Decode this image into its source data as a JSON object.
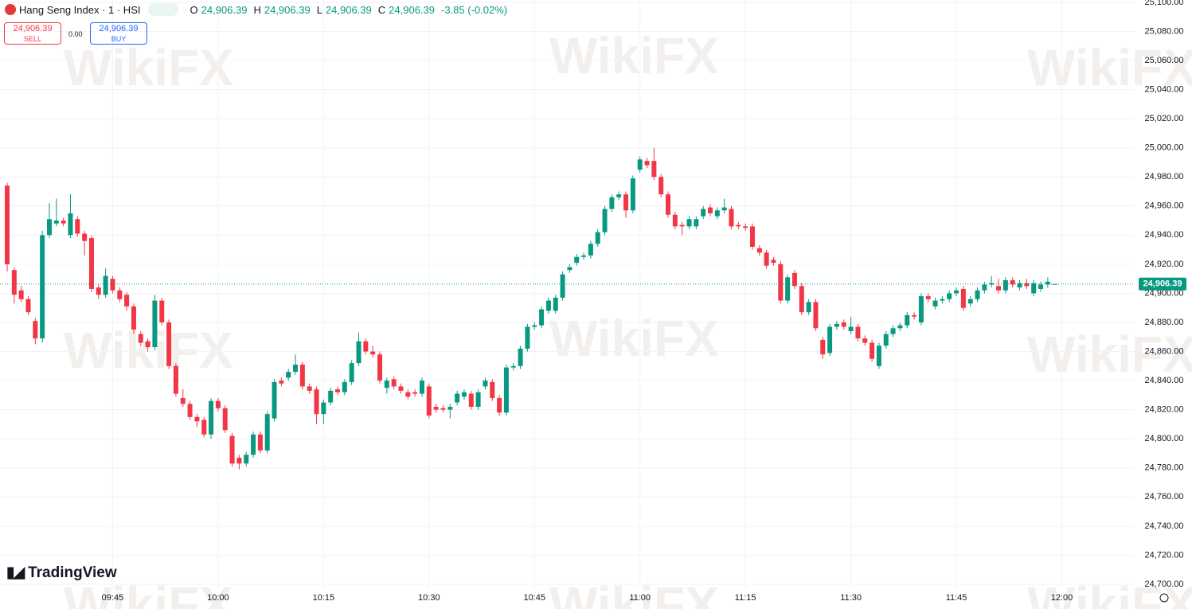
{
  "chart_data": {
    "type": "candlestick",
    "title": "Hang Seng Index · 1 · HSI",
    "ohlc_labels": [
      {
        "key": "O",
        "text": "24,906.39"
      },
      {
        "key": "H",
        "text": "24,906.39"
      },
      {
        "key": "L",
        "text": "24,906.39"
      },
      {
        "key": "C",
        "text": "24,906.39"
      }
    ],
    "change": "-3.85 (-0.02%)",
    "sell": {
      "price": "24,906.39",
      "label": "SELL"
    },
    "spread": "0.00",
    "buy": {
      "price": "24,906.39",
      "label": "BUY"
    },
    "logo": "TradingView",
    "watermark": "WikiFX",
    "up_color": "#089981",
    "down_color": "#f23645",
    "grid": true,
    "last_price": {
      "value": 24906.39,
      "label": "24,906.39"
    },
    "ylim": [
      24696.7,
      25101.6
    ],
    "yticks": [
      {
        "value": 24700,
        "label": "24,700.00"
      },
      {
        "value": 24720,
        "label": "24,720.00"
      },
      {
        "value": 24740,
        "label": "24,740.00"
      },
      {
        "value": 24760,
        "label": "24,760.00"
      },
      {
        "value": 24780,
        "label": "24,780.00"
      },
      {
        "value": 24800,
        "label": "24,800.00"
      },
      {
        "value": 24820,
        "label": "24,820.00"
      },
      {
        "value": 24840,
        "label": "24,840.00"
      },
      {
        "value": 24860,
        "label": "24,860.00"
      },
      {
        "value": 24880,
        "label": "24,880.00"
      },
      {
        "value": 24900,
        "label": "24,900.00"
      },
      {
        "value": 24920,
        "label": "24,920.00"
      },
      {
        "value": 24940,
        "label": "24,940.00"
      },
      {
        "value": 24960,
        "label": "24,960.00"
      },
      {
        "value": 24980,
        "label": "24,980.00"
      },
      {
        "value": 25000,
        "label": "25,000.00"
      },
      {
        "value": 25020,
        "label": "25,020.00"
      },
      {
        "value": 25040,
        "label": "25,040.00"
      },
      {
        "value": 25060,
        "label": "25,060.00"
      },
      {
        "value": 25080,
        "label": "25,080.00"
      },
      {
        "value": 25100,
        "label": "25,100.00"
      }
    ],
    "xticks": [
      "09:45",
      "10:00",
      "10:15",
      "10:30",
      "10:45",
      "11:00",
      "11:15",
      "11:30",
      "11:45",
      "12:00"
    ],
    "x": [
      "09:30",
      "09:31",
      "09:32",
      "09:33",
      "09:34",
      "09:35",
      "09:36",
      "09:37",
      "09:38",
      "09:39",
      "09:40",
      "09:41",
      "09:42",
      "09:43",
      "09:44",
      "09:45",
      "09:46",
      "09:47",
      "09:48",
      "09:49",
      "09:50",
      "09:51",
      "09:52",
      "09:53",
      "09:54",
      "09:55",
      "09:56",
      "09:57",
      "09:58",
      "09:59",
      "10:00",
      "10:01",
      "10:02",
      "10:03",
      "10:04",
      "10:05",
      "10:06",
      "10:07",
      "10:08",
      "10:09",
      "10:10",
      "10:11",
      "10:12",
      "10:13",
      "10:14",
      "10:15",
      "10:16",
      "10:17",
      "10:18",
      "10:19",
      "10:20",
      "10:21",
      "10:22",
      "10:23",
      "10:24",
      "10:25",
      "10:26",
      "10:27",
      "10:28",
      "10:29",
      "10:30",
      "10:31",
      "10:32",
      "10:33",
      "10:34",
      "10:35",
      "10:36",
      "10:37",
      "10:38",
      "10:39",
      "10:40",
      "10:41",
      "10:42",
      "10:43",
      "10:44",
      "10:45",
      "10:46",
      "10:47",
      "10:48",
      "10:49",
      "10:50",
      "10:51",
      "10:52",
      "10:53",
      "10:54",
      "10:55",
      "10:56",
      "10:57",
      "10:58",
      "10:59",
      "11:00",
      "11:01",
      "11:02",
      "11:03",
      "11:04",
      "11:05",
      "11:06",
      "11:07",
      "11:08",
      "11:09",
      "11:10",
      "11:11",
      "11:12",
      "11:13",
      "11:14",
      "11:15",
      "11:16",
      "11:17",
      "11:18",
      "11:19",
      "11:20",
      "11:21",
      "11:22",
      "11:23",
      "11:24",
      "11:25",
      "11:26",
      "11:27",
      "11:28",
      "11:29",
      "11:30",
      "11:31",
      "11:32",
      "11:33",
      "11:34",
      "11:35",
      "11:36",
      "11:37",
      "11:38",
      "11:39",
      "11:40",
      "11:41",
      "11:42",
      "11:43",
      "11:44",
      "11:45",
      "11:46",
      "11:47",
      "11:48",
      "11:49",
      "11:50",
      "11:51",
      "11:52",
      "11:53",
      "11:54",
      "11:55",
      "11:56",
      "11:57",
      "11:58",
      "11:59"
    ],
    "candles": [
      [
        24974,
        24976,
        24915,
        24920
      ],
      [
        24916,
        24918,
        24893,
        24899
      ],
      [
        24902,
        24905,
        24894,
        24896
      ],
      [
        24896,
        24898,
        24885,
        24887
      ],
      [
        24881,
        24883,
        24865,
        24869
      ],
      [
        24869,
        24943,
        24866,
        24940
      ],
      [
        24940,
        24962,
        24938,
        24951
      ],
      [
        24948,
        24965,
        24946,
        24950
      ],
      [
        24950,
        24952,
        24946,
        24948
      ],
      [
        24940,
        24968,
        24938,
        24955
      ],
      [
        24951,
        24953,
        24939,
        24941
      ],
      [
        24941,
        24943,
        24926,
        24936
      ],
      [
        24938,
        24940,
        24901,
        24903
      ],
      [
        24904,
        24906,
        24896,
        24899
      ],
      [
        24899,
        24917,
        24897,
        24912
      ],
      [
        24910,
        24912,
        24900,
        24902
      ],
      [
        24902,
        24904,
        24894,
        24896
      ],
      [
        24899,
        24901,
        24888,
        24891
      ],
      [
        24891,
        24893,
        24872,
        24875
      ],
      [
        24872,
        24874,
        24864,
        24866
      ],
      [
        24867,
        24869,
        24860,
        24863
      ],
      [
        24863,
        24899,
        24861,
        24895
      ],
      [
        24895,
        24897,
        24878,
        24880
      ],
      [
        24880,
        24882,
        24848,
        24850
      ],
      [
        24850,
        24852,
        24829,
        24831
      ],
      [
        24828,
        24834,
        24822,
        24824
      ],
      [
        24824,
        24826,
        24813,
        24815
      ],
      [
        24815,
        24817,
        24808,
        24812
      ],
      [
        24813,
        24815,
        24801,
        24803
      ],
      [
        24803,
        24828,
        24800,
        24826
      ],
      [
        24826,
        24828,
        24819,
        24821
      ],
      [
        24821,
        24823,
        24804,
        24806
      ],
      [
        24802,
        24804,
        24781,
        24783
      ],
      [
        24787,
        24789,
        24779,
        24783
      ],
      [
        24783,
        24791,
        24781,
        24789
      ],
      [
        24789,
        24805,
        24787,
        24803
      ],
      [
        24803,
        24805,
        24790,
        24792
      ],
      [
        24792,
        24819,
        24790,
        24817
      ],
      [
        24814,
        24841,
        24812,
        24839
      ],
      [
        24840,
        24842,
        24836,
        24838
      ],
      [
        24842,
        24848,
        24840,
        24846
      ],
      [
        24846,
        24858,
        24844,
        24851
      ],
      [
        24851,
        24853,
        24834,
        24836
      ],
      [
        24836,
        24838,
        24831,
        24833
      ],
      [
        24834,
        24836,
        24810,
        24817
      ],
      [
        24817,
        24827,
        24810,
        24825
      ],
      [
        24825,
        24835,
        24823,
        24833
      ],
      [
        24834,
        24836,
        24830,
        24832
      ],
      [
        24832,
        24841,
        24830,
        24839
      ],
      [
        24839,
        24854,
        24837,
        24852
      ],
      [
        24852,
        24873,
        24850,
        24867
      ],
      [
        24867,
        24869,
        24858,
        24860
      ],
      [
        24860,
        24864,
        24856,
        24858
      ],
      [
        24858,
        24860,
        24838,
        24840
      ],
      [
        24835,
        24842,
        24831,
        24840
      ],
      [
        24841,
        24843,
        24834,
        24836
      ],
      [
        24836,
        24838,
        24831,
        24833
      ],
      [
        24832,
        24834,
        24827,
        24829
      ],
      [
        24832,
        24834,
        24829,
        24831
      ],
      [
        24831,
        24842,
        24829,
        24840
      ],
      [
        24836,
        24838,
        24814,
        24816
      ],
      [
        24822,
        24824,
        24818,
        24820
      ],
      [
        24821,
        24823,
        24818,
        24820
      ],
      [
        24820,
        24824,
        24814,
        24822
      ],
      [
        24825,
        24833,
        24823,
        24831
      ],
      [
        24829,
        24834,
        24827,
        24832
      ],
      [
        24831,
        24833,
        24820,
        24822
      ],
      [
        24822,
        24834,
        24820,
        24832
      ],
      [
        24836,
        24842,
        24834,
        24840
      ],
      [
        24839,
        24841,
        24826,
        24828
      ],
      [
        24828,
        24830,
        24816,
        24818
      ],
      [
        24818,
        24851,
        24816,
        24849
      ],
      [
        24849,
        24852,
        24847,
        24850
      ],
      [
        24850,
        24864,
        24848,
        24862
      ],
      [
        24862,
        24879,
        24860,
        24877
      ],
      [
        24877,
        24880,
        24875,
        24878
      ],
      [
        24878,
        24891,
        24876,
        24889
      ],
      [
        24888,
        24897,
        24886,
        24895
      ],
      [
        24888,
        24899,
        24886,
        24897
      ],
      [
        24897,
        24915,
        24895,
        24913
      ],
      [
        24916,
        24920,
        24914,
        24918
      ],
      [
        24921,
        24927,
        24919,
        24925
      ],
      [
        24925,
        24928,
        24923,
        24926
      ],
      [
        24926,
        24936,
        24924,
        24934
      ],
      [
        24934,
        24944,
        24932,
        24942
      ],
      [
        24942,
        24960,
        24940,
        24958
      ],
      [
        24958,
        24968,
        24956,
        24966
      ],
      [
        24966,
        24970,
        24964,
        24968
      ],
      [
        24968,
        24970,
        24952,
        24957
      ],
      [
        24957,
        24981,
        24955,
        24979
      ],
      [
        24985,
        24994,
        24983,
        24992
      ],
      [
        24991,
        24993,
        24986,
        24988
      ],
      [
        24991,
        25000,
        24978,
        24980
      ],
      [
        24980,
        24982,
        24966,
        24968
      ],
      [
        24968,
        24970,
        24952,
        24954
      ],
      [
        24954,
        24956,
        24944,
        24946
      ],
      [
        24947,
        24949,
        24940,
        24946
      ],
      [
        24946,
        24953,
        24944,
        24951
      ],
      [
        24946,
        24953,
        24944,
        24951
      ],
      [
        24953,
        24960,
        24951,
        24958
      ],
      [
        24959,
        24961,
        24953,
        24955
      ],
      [
        24953,
        24959,
        24951,
        24957
      ],
      [
        24957,
        24965,
        24955,
        24959
      ],
      [
        24958,
        24960,
        24944,
        24946
      ],
      [
        24947,
        24949,
        24944,
        24946
      ],
      [
        24946,
        24948,
        24943,
        24945
      ],
      [
        24946,
        24948,
        24930,
        24932
      ],
      [
        24931,
        24933,
        24926,
        24928
      ],
      [
        24928,
        24930,
        24917,
        24919
      ],
      [
        24923,
        24925,
        24919,
        24921
      ],
      [
        24920,
        24922,
        24893,
        24895
      ],
      [
        24895,
        24913,
        24893,
        24911
      ],
      [
        24914,
        24916,
        24903,
        24905
      ],
      [
        24905,
        24907,
        24885,
        24887
      ],
      [
        24887,
        24896,
        24885,
        24894
      ],
      [
        24894,
        24896,
        24874,
        24876
      ],
      [
        24868,
        24870,
        24855,
        24858
      ],
      [
        24859,
        24879,
        24857,
        24877
      ],
      [
        24877,
        24881,
        24875,
        24879
      ],
      [
        24880,
        24882,
        24875,
        24877
      ],
      [
        24874,
        24884,
        24872,
        24877
      ],
      [
        24877,
        24879,
        24867,
        24869
      ],
      [
        24869,
        24871,
        24864,
        24866
      ],
      [
        24866,
        24868,
        24853,
        24855
      ],
      [
        24850,
        24866,
        24848,
        24864
      ],
      [
        24864,
        24874,
        24862,
        24872
      ],
      [
        24872,
        24878,
        24870,
        24876
      ],
      [
        24876,
        24880,
        24874,
        24878
      ],
      [
        24878,
        24887,
        24876,
        24885
      ],
      [
        24885,
        24887,
        24882,
        24884
      ],
      [
        24880,
        24900,
        24878,
        24898
      ],
      [
        24898,
        24900,
        24894,
        24896
      ],
      [
        24891,
        24897,
        24889,
        24895
      ],
      [
        24895,
        24898,
        24893,
        24896
      ],
      [
        24896,
        24902,
        24894,
        24900
      ],
      [
        24900,
        24904,
        24898,
        24902
      ],
      [
        24903,
        24905,
        24888,
        24890
      ],
      [
        24893,
        24898,
        24891,
        24896
      ],
      [
        24896,
        24904,
        24894,
        24902
      ],
      [
        24902,
        24908,
        24900,
        24906
      ],
      [
        24906,
        24912,
        24904,
        24907
      ],
      [
        24905,
        24910,
        24900,
        24902
      ],
      [
        24902,
        24911,
        24900,
        24909
      ],
      [
        24909,
        24911,
        24904,
        24906
      ],
      [
        24904,
        24909,
        24902,
        24907
      ],
      [
        24907,
        24910,
        24903,
        24905
      ],
      [
        24900,
        24909,
        24898,
        24907
      ],
      [
        24903,
        24908,
        24901,
        24906
      ],
      [
        24906,
        24911,
        24904,
        24908
      ],
      [
        24906.39,
        24906.39,
        24906.39,
        24906.39
      ]
    ]
  }
}
